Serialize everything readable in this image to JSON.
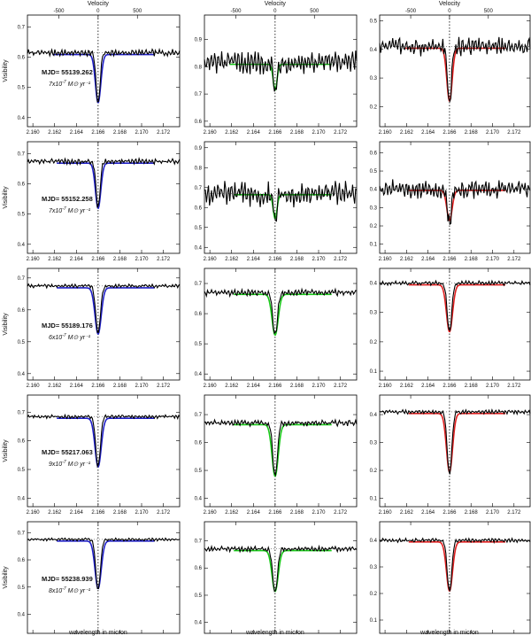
{
  "chart_data": {
    "type": "line",
    "layout": "5x3 grid",
    "velocity_axis": {
      "title": "Velocity",
      "ticks": [
        -500,
        0,
        500
      ]
    },
    "wavelength_axis": {
      "title": "wavelength in micron",
      "ticks": [
        "2.160",
        "2.162",
        "2.164",
        "2.166",
        "2.168",
        "2.170",
        "2.172"
      ],
      "xlim": [
        2.1595,
        2.1735
      ]
    },
    "ylabel": "Visibility",
    "line_center": 2.166,
    "columns": [
      {
        "model_color": "#2020c8"
      },
      {
        "model_color": "#18c818"
      },
      {
        "model_color": "#e02020"
      }
    ],
    "rows": [
      {
        "mjd_label": "MJD= 55139.262",
        "rate_prefix": "7x10",
        "rate_exp": "-7",
        "rate_unit": "M⊙ yr⁻¹",
        "panels": [
          {
            "ylim": [
              0.37,
              0.74
            ],
            "yticks": [
              "0.4",
              "0.5",
              "0.6",
              "0.7"
            ],
            "continuum": 0.615,
            "model_min": 0.455,
            "obs_min": 0.445,
            "noise": 0.012,
            "model_half_width": 0.00035
          },
          {
            "ylim": [
              0.58,
              0.99
            ],
            "yticks": [
              "0.6",
              "0.7",
              "0.8",
              "0.9"
            ],
            "continuum": 0.815,
            "model_min": 0.72,
            "obs_min": 0.69,
            "noise": 0.045,
            "model_half_width": 0.00025
          },
          {
            "ylim": [
              0.13,
              0.52
            ],
            "yticks": [
              "0.2",
              "0.3",
              "0.4",
              "0.5"
            ],
            "continuum": 0.41,
            "model_min": 0.225,
            "obs_min": 0.205,
            "noise": 0.035,
            "model_half_width": 0.00035
          }
        ]
      },
      {
        "mjd_label": "MJD= 55152.258",
        "rate_prefix": "7x10",
        "rate_exp": "-7",
        "rate_unit": "M⊙ yr⁻¹",
        "panels": [
          {
            "ylim": [
              0.37,
              0.74
            ],
            "yticks": [
              "0.4",
              "0.5",
              "0.6",
              "0.7"
            ],
            "continuum": 0.675,
            "model_min": 0.525,
            "obs_min": 0.52,
            "noise": 0.01,
            "model_half_width": 0.00035
          },
          {
            "ylim": [
              0.37,
              0.93
            ],
            "yticks": [
              "0.4",
              "0.5",
              "0.6",
              "0.7",
              "0.8",
              "0.9"
            ],
            "continuum": 0.67,
            "model_min": 0.55,
            "obs_min": 0.52,
            "noise": 0.07,
            "model_half_width": 0.00025
          },
          {
            "ylim": [
              0.05,
              0.66
            ],
            "yticks": [
              "0.1",
              "0.2",
              "0.3",
              "0.4",
              "0.5",
              "0.6"
            ],
            "continuum": 0.4,
            "model_min": 0.235,
            "obs_min": 0.215,
            "noise": 0.055,
            "model_half_width": 0.00035
          }
        ]
      },
      {
        "mjd_label": "MJD= 55189.176",
        "rate_prefix": "6x10",
        "rate_exp": "-7",
        "rate_unit": "M⊙ yr⁻¹",
        "panels": [
          {
            "ylim": [
              0.38,
              0.73
            ],
            "yticks": [
              "0.4",
              "0.5",
              "0.6",
              "0.7"
            ],
            "continuum": 0.675,
            "model_min": 0.53,
            "obs_min": 0.525,
            "noise": 0.006,
            "model_half_width": 0.0004
          },
          {
            "ylim": [
              0.38,
              0.75
            ],
            "yticks": [
              "0.4",
              "0.5",
              "0.6",
              "0.7"
            ],
            "continuum": 0.67,
            "model_min": 0.535,
            "obs_min": 0.53,
            "noise": 0.012,
            "model_half_width": 0.0004
          },
          {
            "ylim": [
              0.07,
              0.45
            ],
            "yticks": [
              "0.1",
              "0.2",
              "0.3",
              "0.4"
            ],
            "continuum": 0.4,
            "model_min": 0.24,
            "obs_min": 0.235,
            "noise": 0.008,
            "model_half_width": 0.0004
          }
        ]
      },
      {
        "mjd_label": "MJD= 55217.063",
        "rate_prefix": "9x10",
        "rate_exp": "-7",
        "rate_unit": "M⊙ yr⁻¹",
        "panels": [
          {
            "ylim": [
              0.37,
              0.76
            ],
            "yticks": [
              "0.4",
              "0.5",
              "0.6",
              "0.7"
            ],
            "continuum": 0.685,
            "model_min": 0.515,
            "obs_min": 0.51,
            "noise": 0.007,
            "model_half_width": 0.0004
          },
          {
            "ylim": [
              0.37,
              0.77
            ],
            "yticks": [
              "0.4",
              "0.5",
              "0.6",
              "0.7"
            ],
            "continuum": 0.67,
            "model_min": 0.485,
            "obs_min": 0.48,
            "noise": 0.012,
            "model_half_width": 0.0004
          },
          {
            "ylim": [
              0.07,
              0.47
            ],
            "yticks": [
              "0.1",
              "0.2",
              "0.3",
              "0.4"
            ],
            "continuum": 0.41,
            "model_min": 0.2,
            "obs_min": 0.185,
            "noise": 0.008,
            "model_half_width": 0.0004
          }
        ]
      },
      {
        "mjd_label": "MJD= 55238.939",
        "rate_prefix": "8x10",
        "rate_exp": "-7",
        "rate_unit": "M⊙ yr⁻¹",
        "panels": [
          {
            "ylim": [
              0.33,
              0.74
            ],
            "yticks": [
              "0.4",
              "0.5",
              "0.6",
              "0.7"
            ],
            "continuum": 0.675,
            "model_min": 0.5,
            "obs_min": 0.49,
            "noise": 0.006,
            "model_half_width": 0.0004
          },
          {
            "ylim": [
              0.36,
              0.77
            ],
            "yticks": [
              "0.4",
              "0.5",
              "0.6",
              "0.7"
            ],
            "continuum": 0.67,
            "model_min": 0.52,
            "obs_min": 0.51,
            "noise": 0.01,
            "model_half_width": 0.0004
          },
          {
            "ylim": [
              0.05,
              0.47
            ],
            "yticks": [
              "0.1",
              "0.2",
              "0.3",
              "0.4"
            ],
            "continuum": 0.4,
            "model_min": 0.215,
            "obs_min": 0.205,
            "noise": 0.008,
            "model_half_width": 0.0004
          }
        ]
      }
    ]
  }
}
